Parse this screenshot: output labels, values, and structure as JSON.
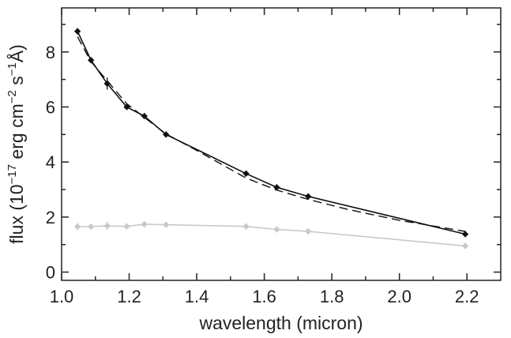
{
  "chart_data": {
    "type": "line",
    "xlabel": "wavelength (micron)",
    "ylabel": {
      "prefix": "flux (10",
      "exp1": "−17",
      "mid1": " erg cm",
      "exp2": "−2",
      "mid2": " s",
      "exp3": "−1",
      "suffix": "Å)"
    },
    "xlim": [
      1.0,
      2.3
    ],
    "ylim": [
      -0.3,
      9.6
    ],
    "xticks": [
      1.0,
      1.2,
      1.4,
      1.6,
      1.8,
      2.0,
      2.2
    ],
    "xtick_labels": [
      "1.0",
      "1.2",
      "1.4",
      "1.6",
      "1.8",
      "2.0",
      "2.2"
    ],
    "xminor": [
      1.1,
      1.3,
      1.5,
      1.7,
      1.9,
      2.1
    ],
    "yticks": [
      0,
      2,
      4,
      6,
      8
    ],
    "ytick_labels": [
      "0",
      "2",
      "4",
      "6",
      "8"
    ],
    "yminor": [
      1,
      3,
      5,
      7,
      9
    ],
    "grid": false,
    "legend": "none",
    "series": [
      {
        "style": "solid-markers",
        "color": "#111111",
        "x": [
          1.047,
          1.087,
          1.135,
          1.193,
          1.245,
          1.309,
          1.546,
          1.637,
          1.73,
          2.195
        ],
        "y": [
          8.75,
          7.7,
          6.85,
          6.0,
          5.67,
          5.0,
          3.58,
          3.08,
          2.75,
          1.38
        ],
        "err": [
          0.12,
          0.1,
          0.22,
          0.07,
          0.07,
          0.06,
          0.1,
          0.08,
          0.08,
          0.08
        ]
      },
      {
        "style": "dashed-fit",
        "color": "#111111",
        "x": [
          1.047,
          1.087,
          1.135,
          1.193,
          1.245,
          1.309,
          1.4,
          1.546,
          1.637,
          1.73,
          1.85,
          2.0,
          2.195
        ],
        "y": [
          8.55,
          7.65,
          6.95,
          6.12,
          5.62,
          5.02,
          4.42,
          3.42,
          2.98,
          2.64,
          2.27,
          1.88,
          1.48
        ]
      },
      {
        "style": "light-markers",
        "color": "#c8c8c8",
        "x": [
          1.047,
          1.087,
          1.135,
          1.193,
          1.245,
          1.309,
          1.546,
          1.637,
          1.73,
          2.195
        ],
        "y": [
          1.65,
          1.65,
          1.68,
          1.66,
          1.74,
          1.72,
          1.66,
          1.55,
          1.48,
          0.95
        ],
        "err": [
          0.13,
          0.08,
          0.15,
          0.07,
          0.06,
          0.05,
          0.06,
          0.06,
          0.05,
          0.05
        ]
      }
    ]
  }
}
